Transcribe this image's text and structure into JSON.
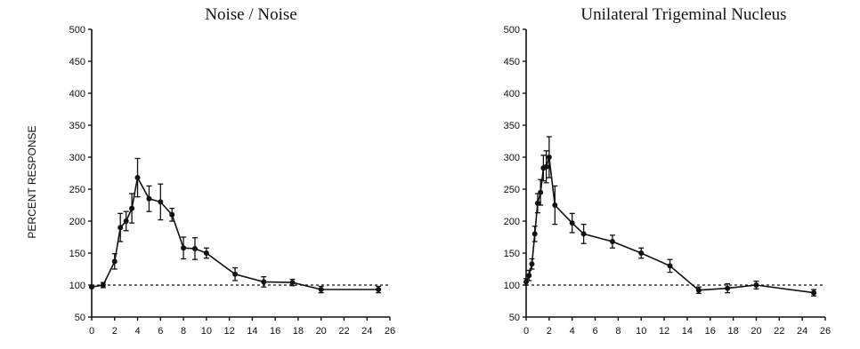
{
  "ylabel_shared": "PERCENT RESPONSE",
  "chart_data": [
    {
      "type": "line",
      "title": "Noise / Noise",
      "xlim": [
        0,
        26
      ],
      "ylim": [
        50,
        500
      ],
      "xticks": [
        0,
        2,
        4,
        6,
        8,
        10,
        12,
        14,
        16,
        18,
        20,
        22,
        24,
        26
      ],
      "yticks": [
        50,
        100,
        150,
        200,
        250,
        300,
        350,
        400,
        450,
        500
      ],
      "reference_line": 100,
      "points": [
        {
          "x": 0,
          "y": 97,
          "err": 0
        },
        {
          "x": 1,
          "y": 100,
          "err": 4
        },
        {
          "x": 2,
          "y": 137,
          "err": 12
        },
        {
          "x": 2.5,
          "y": 190,
          "err": 22
        },
        {
          "x": 3,
          "y": 200,
          "err": 15
        },
        {
          "x": 3.5,
          "y": 220,
          "err": 23
        },
        {
          "x": 4,
          "y": 268,
          "err": 30
        },
        {
          "x": 5,
          "y": 235,
          "err": 20
        },
        {
          "x": 6,
          "y": 230,
          "err": 28
        },
        {
          "x": 7,
          "y": 210,
          "err": 10
        },
        {
          "x": 8,
          "y": 158,
          "err": 17
        },
        {
          "x": 9,
          "y": 157,
          "err": 17
        },
        {
          "x": 10,
          "y": 150,
          "err": 8
        },
        {
          "x": 12.5,
          "y": 117,
          "err": 10
        },
        {
          "x": 15,
          "y": 105,
          "err": 8
        },
        {
          "x": 17.5,
          "y": 104,
          "err": 5
        },
        {
          "x": 20,
          "y": 93,
          "err": 5
        },
        {
          "x": 25,
          "y": 93,
          "err": 5
        }
      ]
    },
    {
      "type": "line",
      "title": "Unilateral Trigeminal Nucleus",
      "xlim": [
        0,
        26
      ],
      "ylim": [
        50,
        500
      ],
      "xticks": [
        0,
        2,
        4,
        6,
        8,
        10,
        12,
        14,
        16,
        18,
        20,
        22,
        24,
        26
      ],
      "yticks": [
        50,
        100,
        150,
        200,
        250,
        300,
        350,
        400,
        450,
        500
      ],
      "reference_line": 100,
      "points": [
        {
          "x": 0,
          "y": 105,
          "err": 5
        },
        {
          "x": 0.25,
          "y": 115,
          "err": 8
        },
        {
          "x": 0.5,
          "y": 133,
          "err": 8
        },
        {
          "x": 0.75,
          "y": 180,
          "err": 12
        },
        {
          "x": 1,
          "y": 228,
          "err": 15
        },
        {
          "x": 1.25,
          "y": 245,
          "err": 20
        },
        {
          "x": 1.5,
          "y": 283,
          "err": 20
        },
        {
          "x": 1.75,
          "y": 285,
          "err": 25
        },
        {
          "x": 2,
          "y": 300,
          "err": 32
        },
        {
          "x": 2.5,
          "y": 225,
          "err": 30
        },
        {
          "x": 4,
          "y": 197,
          "err": 15
        },
        {
          "x": 5,
          "y": 180,
          "err": 15
        },
        {
          "x": 7.5,
          "y": 168,
          "err": 10
        },
        {
          "x": 10,
          "y": 150,
          "err": 8
        },
        {
          "x": 12.5,
          "y": 130,
          "err": 10
        },
        {
          "x": 15,
          "y": 92,
          "err": 5
        },
        {
          "x": 17.5,
          "y": 95,
          "err": 7
        },
        {
          "x": 20,
          "y": 100,
          "err": 6
        },
        {
          "x": 25,
          "y": 88,
          "err": 5
        }
      ]
    }
  ]
}
